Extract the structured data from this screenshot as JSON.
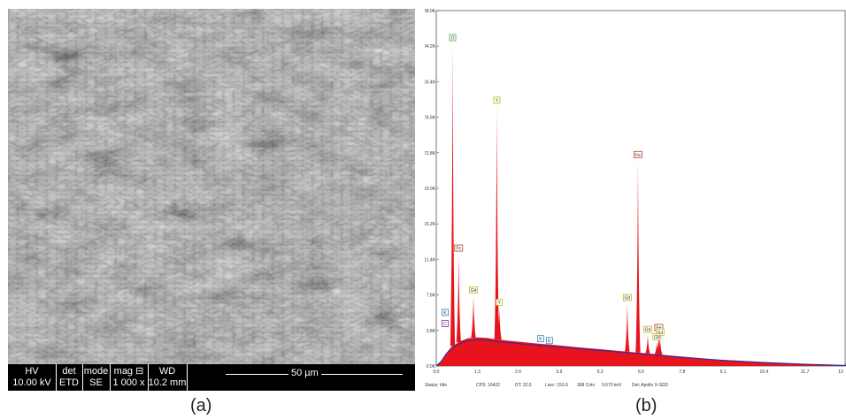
{
  "panel_a": {
    "caption": "(a)",
    "databar": {
      "hv_label": "HV",
      "hv_value": "10.00 kV",
      "det_label": "det",
      "det_value": "ETD",
      "mode_label": "mode",
      "mode_value": "SE",
      "mag_label": "mag ⊟",
      "mag_value": "1 000 x",
      "wd_label": "WD",
      "wd_value": "10.2 mm",
      "scale_label": "50 µm"
    }
  },
  "panel_b": {
    "caption": "(b)",
    "status": {
      "status": "Status: Idle",
      "cps": "CPS: 16422",
      "dt": "DT: 22.6",
      "lsec": "Lsec: 152.6",
      "cnts": "368 Cnts",
      "kev": "9.670 keV",
      "det": "Det: Apollo X-SDD"
    }
  },
  "colors": {
    "spectrum_fill": "#e8141c",
    "background_line": "#3a2aa0",
    "frame": "#555555"
  },
  "chart_data": {
    "type": "area",
    "title": "",
    "xlabel": "",
    "ylabel": "",
    "xlim": [
      0,
      13
    ],
    "ylim": [
      0,
      38000
    ],
    "x_ticks": [
      "0.0",
      "1.3",
      "2.6",
      "3.9",
      "5.2",
      "6.5",
      "7.8",
      "9.1",
      "10.4",
      "11.7",
      "13"
    ],
    "y_ticks": [
      "0.0K",
      "3.8K",
      "7.6K",
      "11.4K",
      "15.2K",
      "19.0K",
      "22.8K",
      "26.6K",
      "30.4K",
      "34.2K",
      "38.0K"
    ],
    "background": {
      "x": [
        0.0,
        0.15,
        0.3,
        0.5,
        0.8,
        1.0,
        1.3,
        1.6,
        2.0,
        2.6,
        3.2,
        3.9,
        4.5,
        5.2,
        6.0,
        6.5,
        7.0,
        7.8,
        8.5,
        9.1,
        10.4,
        11.7,
        13.0
      ],
      "y": [
        0,
        500,
        1300,
        2100,
        2700,
        2950,
        3050,
        3000,
        2800,
        2600,
        2400,
        2200,
        2000,
        1800,
        1550,
        1400,
        1250,
        1000,
        800,
        650,
        400,
        200,
        50
      ]
    },
    "peaks": [
      {
        "label": "O",
        "energy": 0.52,
        "counts": 34500,
        "label_color": "#4fa84f"
      },
      {
        "label": "Fe",
        "energy": 0.71,
        "counts": 12000,
        "label_color": "#c0392b"
      },
      {
        "label": "Gd",
        "energy": 1.18,
        "counts": 7500,
        "label_color": "#c9b800"
      },
      {
        "label": "Y",
        "energy": 1.92,
        "counts": 27800,
        "label_color": "#c9b800"
      },
      {
        "label": "Y",
        "energy": 2.0,
        "counts": 6200,
        "label_color": "#c9b800"
      },
      {
        "label": "K",
        "energy": 3.31,
        "counts": 2300,
        "label_color": "#2e86c1"
      },
      {
        "label": "K",
        "energy": 3.59,
        "counts": 2100,
        "label_color": "#2e86c1"
      },
      {
        "label": "Gd",
        "energy": 6.06,
        "counts": 6700,
        "label_color": "#c9b800"
      },
      {
        "label": "Fe",
        "energy": 6.4,
        "counts": 22000,
        "label_color": "#c0392b"
      },
      {
        "label": "Gd",
        "energy": 6.71,
        "counts": 3300,
        "label_color": "#c9b800"
      },
      {
        "label": "Gd",
        "energy": 7.0,
        "counts": 2500,
        "label_color": "#c9b800"
      },
      {
        "label": "Fe",
        "energy": 7.06,
        "counts": 3500,
        "label_color": "#c0392b"
      },
      {
        "label": "Gd",
        "energy": 7.1,
        "counts": 3000,
        "label_color": "#c9b800"
      }
    ],
    "low_energy_labels": [
      {
        "label": "K",
        "energy": 0.28,
        "counts": 5400,
        "label_color": "#2e86c1"
      },
      {
        "label": "C",
        "energy": 0.28,
        "counts": 4200,
        "label_color": "#7d3c98"
      }
    ],
    "grid": false
  }
}
